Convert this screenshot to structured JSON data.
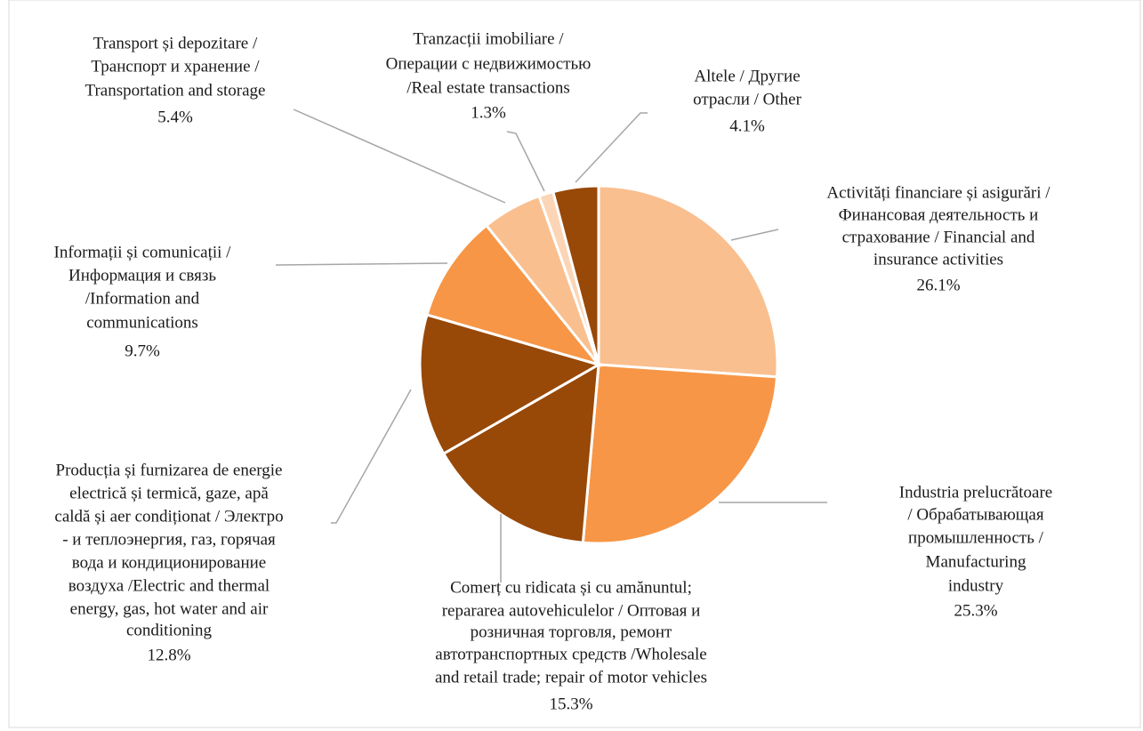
{
  "chart_data": {
    "type": "pie",
    "categories": [
      [
        "Activități financiare și asigurări  /",
        "Финансовая деятельность и",
        "страхование / Financial and",
        "insurance activities"
      ],
      [
        "Industria prelucrătoare",
        "/ Обрабатывающая",
        "промышленность /",
        "Manufacturing",
        "industry"
      ],
      [
        "Comerț cu ridicata și cu amănuntul;",
        "repararea autovehiculelor / Оптовая и",
        "розничная торговля,  ремонт",
        "автотранспортных средств /Wholesale",
        "and retail trade; repair of motor vehicles"
      ],
      [
        "Producția și furnizarea de energie",
        "electrică și termică, gaze, apă",
        "caldă și aer condiționat / Электро",
        "- и теплоэнергия, газ, горячая",
        "вода и кондиционирование",
        "воздуха /Electric and thermal",
        "energy, gas, hot water and air",
        "conditioning"
      ],
      [
        "Informații și comunicații /",
        "Информация и связь",
        "/Information and",
        "communications"
      ],
      [
        "Transport și depozitare /",
        "Транспорт  и хранение /",
        "Transportation and storage"
      ],
      [
        "Tranzacții imobiliare /",
        "Операции с недвижимостью",
        "/Real estate transactions"
      ],
      [
        "Altele / Другие",
        "отрасли / Other"
      ]
    ],
    "values": [
      26.1,
      25.3,
      15.3,
      12.8,
      9.7,
      5.4,
      1.3,
      4.1
    ],
    "value_labels": [
      "26.1%",
      "25.3%",
      "15.3%",
      "12.8%",
      "9.7%",
      "5.4%",
      "1.3%",
      "4.1%"
    ],
    "colors": [
      "#f9bf8f",
      "#f79646",
      "#984807",
      "#984807",
      "#f79646",
      "#f9bf8f",
      "#fbd5b5",
      "#984807"
    ]
  }
}
